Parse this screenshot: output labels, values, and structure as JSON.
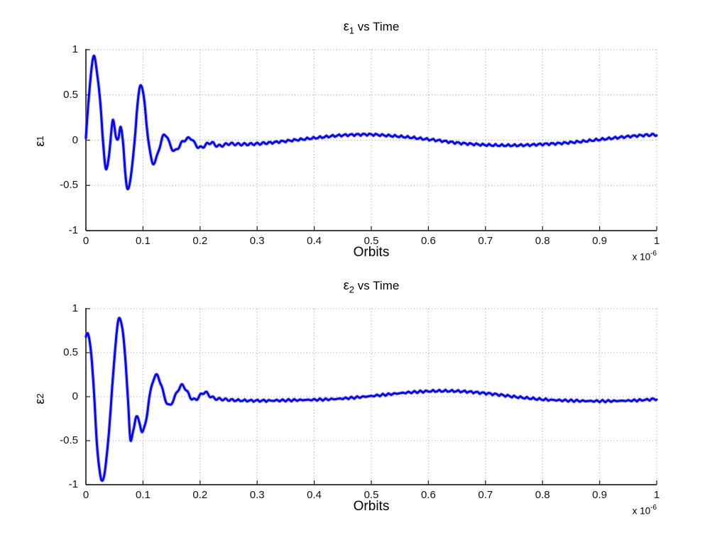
{
  "figure": {
    "background": "#ffffff",
    "style": "matlab-figure"
  },
  "chart_data": [
    {
      "type": "line",
      "title": "ε1 vs Time",
      "title_parts": {
        "base": "ε",
        "sub": "1",
        "rest": " vs Time"
      },
      "xlabel": "Orbits",
      "ylabel": "ε1",
      "ylabel_parts": {
        "base": "ε",
        "sub": "1"
      },
      "x_scale": {
        "prefix": "x 10",
        "exponent": "-6"
      },
      "xlim": [
        0,
        1
      ],
      "ylim": [
        -1,
        1
      ],
      "x_unit_multiplier": "1e-6",
      "xticks": [
        "0",
        "0.1",
        "0.2",
        "0.3",
        "0.4",
        "0.5",
        "0.6",
        "0.7",
        "0.8",
        "0.9",
        "1"
      ],
      "yticks": [
        "1",
        "0.5",
        "0",
        "-0.5",
        "-1"
      ],
      "grid": "dotted",
      "legend": "none",
      "line_color": "#0b0bdb",
      "ripple": {
        "amplitude": 0.013,
        "period": 0.011
      },
      "series": [
        {
          "name": "epsilon1",
          "points": [
            [
              0,
              0.02
            ],
            [
              0.004,
              0.38
            ],
            [
              0.009,
              0.75
            ],
            [
              0.014,
              0.92
            ],
            [
              0.019,
              0.78
            ],
            [
              0.025,
              0.42
            ],
            [
              0.03,
              0.0
            ],
            [
              0.035,
              -0.33
            ],
            [
              0.04,
              -0.18
            ],
            [
              0.045,
              0.12
            ],
            [
              0.048,
              0.21
            ],
            [
              0.053,
              0.04
            ],
            [
              0.057,
              0.01
            ],
            [
              0.061,
              0.15
            ],
            [
              0.065,
              -0.02
            ],
            [
              0.069,
              -0.38
            ],
            [
              0.073,
              -0.53
            ],
            [
              0.079,
              -0.4
            ],
            [
              0.085,
              -0.02
            ],
            [
              0.091,
              0.42
            ],
            [
              0.096,
              0.62
            ],
            [
              0.102,
              0.44
            ],
            [
              0.109,
              0.02
            ],
            [
              0.115,
              -0.22
            ],
            [
              0.121,
              -0.24
            ],
            [
              0.128,
              -0.1
            ],
            [
              0.135,
              0.04
            ],
            [
              0.141,
              0.05
            ],
            [
              0.148,
              -0.06
            ],
            [
              0.155,
              -0.12
            ],
            [
              0.162,
              -0.08
            ],
            [
              0.169,
              -0.02
            ],
            [
              0.176,
              0.01
            ],
            [
              0.184,
              0.02
            ],
            [
              0.191,
              -0.04
            ],
            [
              0.198,
              -0.08
            ],
            [
              0.206,
              -0.07
            ],
            [
              0.213,
              -0.04
            ],
            [
              0.221,
              -0.03
            ],
            [
              0.229,
              -0.06
            ],
            [
              0.238,
              -0.06
            ],
            [
              0.25,
              -0.04
            ],
            [
              0.265,
              -0.045
            ],
            [
              0.28,
              -0.045
            ],
            [
              0.3,
              -0.04
            ],
            [
              0.32,
              -0.03
            ],
            [
              0.35,
              -0.01
            ],
            [
              0.38,
              0.01
            ],
            [
              0.41,
              0.03
            ],
            [
              0.44,
              0.05
            ],
            [
              0.47,
              0.06
            ],
            [
              0.5,
              0.062
            ],
            [
              0.53,
              0.05
            ],
            [
              0.56,
              0.035
            ],
            [
              0.59,
              0.015
            ],
            [
              0.62,
              -0.005
            ],
            [
              0.65,
              -0.03
            ],
            [
              0.68,
              -0.045
            ],
            [
              0.71,
              -0.055
            ],
            [
              0.74,
              -0.058
            ],
            [
              0.77,
              -0.055
            ],
            [
              0.8,
              -0.045
            ],
            [
              0.83,
              -0.035
            ],
            [
              0.86,
              -0.02
            ],
            [
              0.89,
              0.0
            ],
            [
              0.92,
              0.02
            ],
            [
              0.95,
              0.04
            ],
            [
              0.98,
              0.055
            ],
            [
              1.0,
              0.06
            ]
          ]
        }
      ]
    },
    {
      "type": "line",
      "title": "ε2 vs Time",
      "title_parts": {
        "base": "ε",
        "sub": "2",
        "rest": " vs Time"
      },
      "xlabel": "Orbits",
      "ylabel": "ε2",
      "ylabel_parts": {
        "base": "ε",
        "sub": "2"
      },
      "x_scale": {
        "prefix": "x 10",
        "exponent": "-6"
      },
      "xlim": [
        0,
        1
      ],
      "ylim": [
        -1,
        1
      ],
      "x_unit_multiplier": "1e-6",
      "xticks": [
        "0",
        "0.1",
        "0.2",
        "0.3",
        "0.4",
        "0.5",
        "0.6",
        "0.7",
        "0.8",
        "0.9",
        "1"
      ],
      "yticks": [
        "1",
        "0.5",
        "0",
        "-0.5",
        "-1"
      ],
      "grid": "dotted",
      "legend": "none",
      "line_color": "#0b0bdb",
      "ripple": {
        "amplitude": 0.013,
        "period": 0.011
      },
      "series": [
        {
          "name": "epsilon2",
          "points": [
            [
              0,
              0.68
            ],
            [
              0.004,
              0.7
            ],
            [
              0.009,
              0.52
            ],
            [
              0.014,
              0.05
            ],
            [
              0.019,
              -0.5
            ],
            [
              0.024,
              -0.85
            ],
            [
              0.028,
              -0.95
            ],
            [
              0.034,
              -0.82
            ],
            [
              0.04,
              -0.42
            ],
            [
              0.047,
              0.18
            ],
            [
              0.053,
              0.68
            ],
            [
              0.058,
              0.88
            ],
            [
              0.064,
              0.78
            ],
            [
              0.069,
              0.42
            ],
            [
              0.074,
              -0.05
            ],
            [
              0.078,
              -0.5
            ],
            [
              0.083,
              -0.38
            ],
            [
              0.088,
              -0.23
            ],
            [
              0.094,
              -0.3
            ],
            [
              0.099,
              -0.4
            ],
            [
              0.105,
              -0.28
            ],
            [
              0.111,
              -0.02
            ],
            [
              0.118,
              0.19
            ],
            [
              0.125,
              0.24
            ],
            [
              0.132,
              0.13
            ],
            [
              0.139,
              -0.03
            ],
            [
              0.146,
              -0.1
            ],
            [
              0.153,
              -0.04
            ],
            [
              0.161,
              0.07
            ],
            [
              0.169,
              0.13
            ],
            [
              0.177,
              0.06
            ],
            [
              0.185,
              -0.02
            ],
            [
              0.193,
              -0.03
            ],
            [
              0.201,
              0.02
            ],
            [
              0.209,
              0.05
            ],
            [
              0.217,
              0.01
            ],
            [
              0.226,
              -0.02
            ],
            [
              0.24,
              -0.03
            ],
            [
              0.26,
              -0.04
            ],
            [
              0.29,
              -0.045
            ],
            [
              0.32,
              -0.045
            ],
            [
              0.36,
              -0.04
            ],
            [
              0.4,
              -0.035
            ],
            [
              0.44,
              -0.025
            ],
            [
              0.48,
              -0.005
            ],
            [
              0.52,
              0.02
            ],
            [
              0.56,
              0.045
            ],
            [
              0.6,
              0.062
            ],
            [
              0.63,
              0.065
            ],
            [
              0.66,
              0.06
            ],
            [
              0.69,
              0.045
            ],
            [
              0.72,
              0.025
            ],
            [
              0.75,
              0.0
            ],
            [
              0.78,
              -0.02
            ],
            [
              0.81,
              -0.035
            ],
            [
              0.85,
              -0.045
            ],
            [
              0.89,
              -0.05
            ],
            [
              0.93,
              -0.048
            ],
            [
              0.97,
              -0.04
            ],
            [
              1.0,
              -0.025
            ]
          ]
        }
      ]
    }
  ]
}
